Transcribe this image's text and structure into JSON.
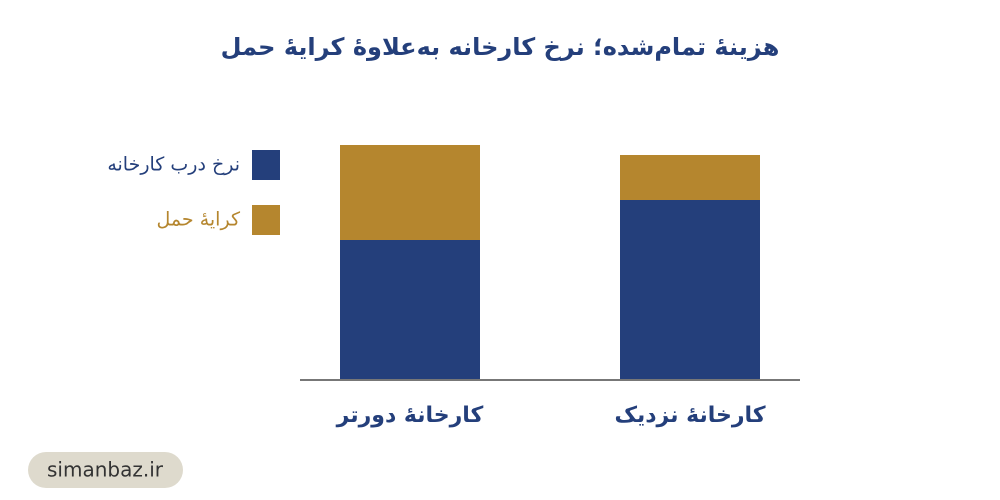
{
  "chart_data": {
    "type": "stacked-bar",
    "title": "هزینهٔ تمام‌شده؛ نرخ کارخانه به‌علاوهٔ کرایهٔ حمل",
    "categories": [
      "کارخانهٔ دورتر",
      "کارخانهٔ نزدیک"
    ],
    "series": [
      {
        "name": "نرخ درب کارخانه",
        "color": "#243f7b",
        "values": [
          140,
          180
        ]
      },
      {
        "name": "کرایهٔ حمل",
        "color": "#b5862e",
        "values": [
          95,
          45
        ]
      }
    ],
    "legend": "left"
  },
  "watermark": "simanbaz.ir"
}
